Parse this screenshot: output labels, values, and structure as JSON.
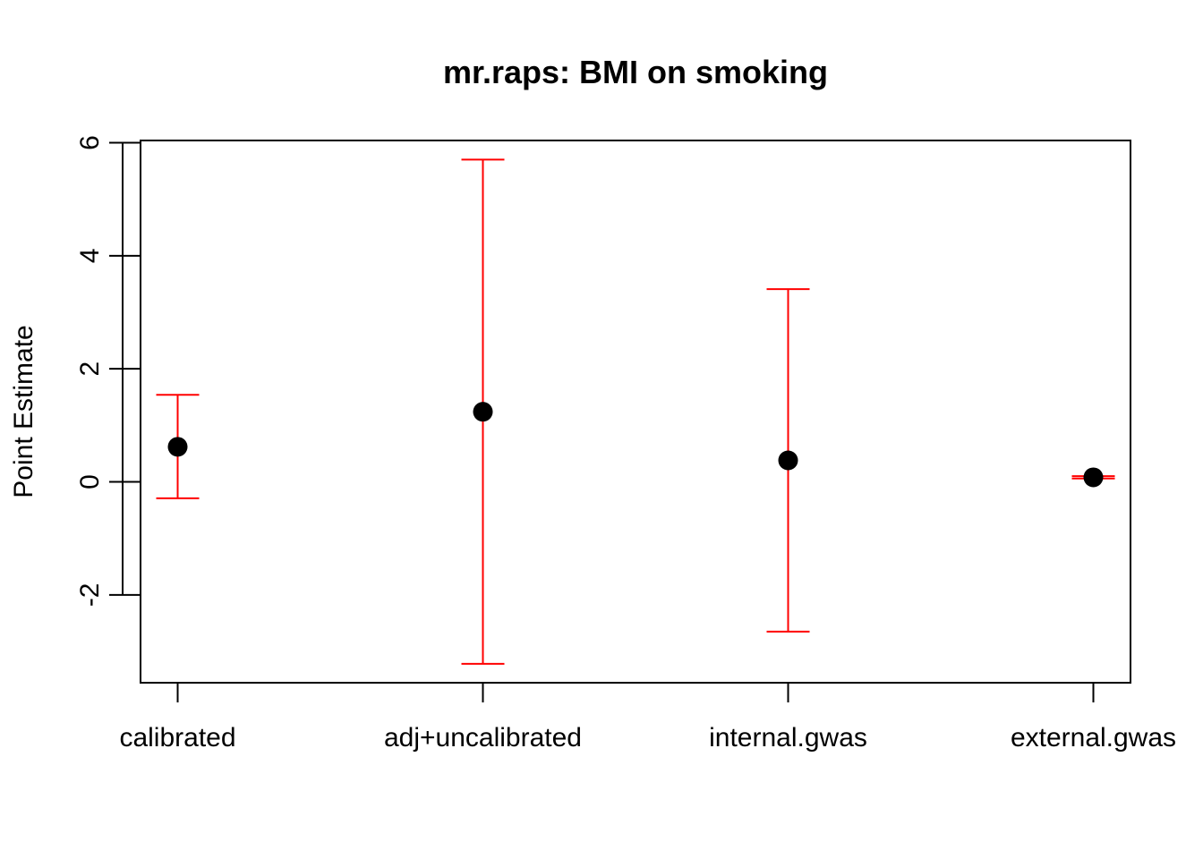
{
  "chart_data": {
    "type": "scatter",
    "title": "mr.raps: BMI on smoking",
    "xlabel": "",
    "ylabel": "Point Estimate",
    "categories": [
      "calibrated",
      "adj+uncalibrated",
      "internal.gwas",
      "external.gwas"
    ],
    "estimates": [
      0.62,
      1.24,
      0.38,
      0.08
    ],
    "lower": [
      -0.29,
      -3.22,
      -2.65,
      0.06
    ],
    "upper": [
      1.54,
      5.7,
      3.41,
      0.1
    ],
    "ylim": [
      -3.55,
      6.0
    ],
    "yticks": [
      -2,
      0,
      2,
      4,
      6
    ],
    "point_color": "#000000",
    "errorbar_color": "#ff0000",
    "grid": false,
    "legend": "none"
  }
}
